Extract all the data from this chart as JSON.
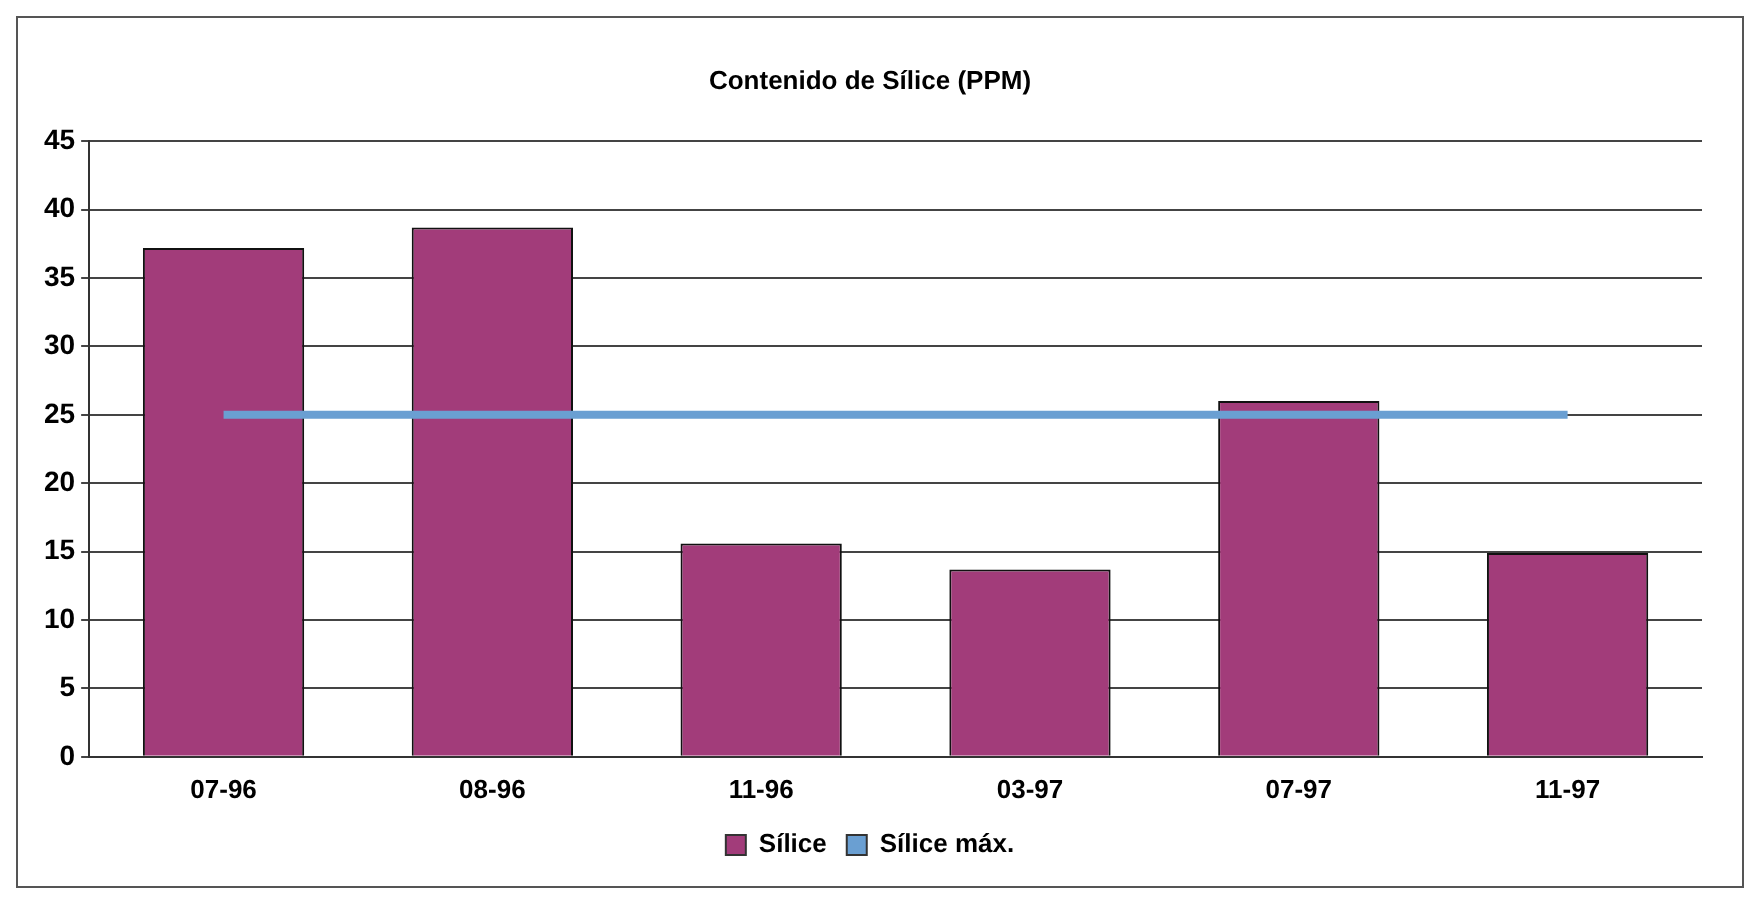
{
  "chart_data": {
    "type": "bar",
    "title": "Contenido de Sílice (PPM)",
    "categories": [
      "07-96",
      "08-96",
      "11-96",
      "03-97",
      "07-97",
      "11-97"
    ],
    "series": [
      {
        "name": "Sílice",
        "color": "#a23c7a",
        "values": [
          37.2,
          38.7,
          15.6,
          13.7,
          26,
          14.9
        ]
      },
      {
        "name": "Sílice máx.",
        "type": "line",
        "color": "#6a9fd2",
        "values": [
          25,
          25,
          25,
          25,
          25,
          25
        ]
      }
    ],
    "ylim": [
      0,
      45
    ],
    "yticks": [
      0,
      5,
      10,
      15,
      20,
      25,
      30,
      35,
      40,
      45
    ],
    "grid": "y",
    "legend": "bottom",
    "marker": "none"
  }
}
